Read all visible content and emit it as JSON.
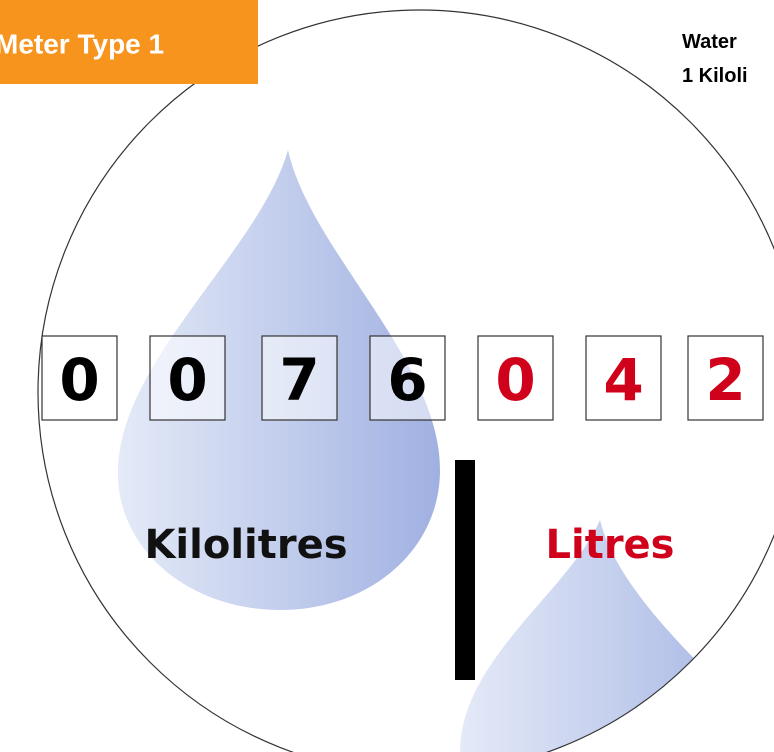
{
  "header": {
    "title": "Meter Type 1",
    "side_lines": [
      "Water",
      "1 Kiloli"
    ]
  },
  "digits": {
    "kilolitres": [
      "0",
      "0",
      "7",
      "6"
    ],
    "litres": [
      "0",
      "4",
      "2"
    ]
  },
  "labels": {
    "kilolitres": "Kilolitres",
    "litres": "Litres"
  }
}
